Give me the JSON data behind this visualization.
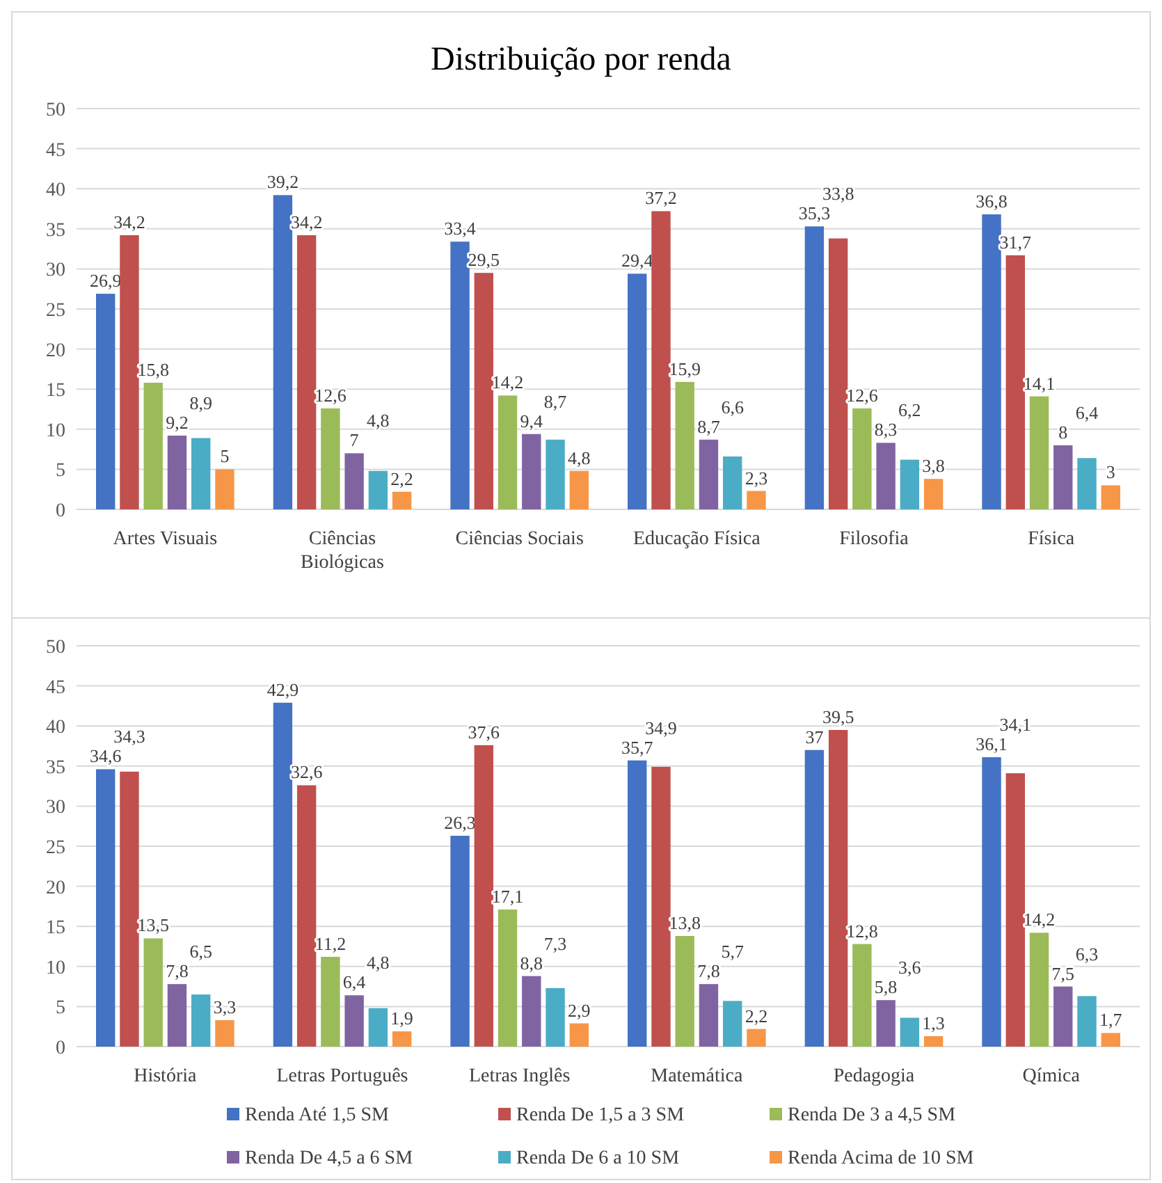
{
  "chart_data": [
    {
      "type": "bar",
      "title": "Distribuição por renda",
      "categories": [
        "Artes Visuais",
        "Ciências Biológicas",
        "Ciências Sociais",
        "Educação Física",
        "Filosofia",
        "Física"
      ],
      "ylim": [
        0,
        50
      ],
      "yticks": [
        0,
        5,
        10,
        15,
        20,
        25,
        30,
        35,
        40,
        45,
        50
      ],
      "grid": "y",
      "legend": false,
      "series": [
        {
          "color": "#4472c4",
          "values": [
            26.9,
            39.2,
            33.4,
            29.4,
            35.3,
            36.8
          ],
          "value_labels": [
            "26,9",
            "39,2",
            "33,4",
            "29,4",
            "35,3",
            "36,8"
          ]
        },
        {
          "color": "#c0504d",
          "values": [
            34.2,
            34.2,
            29.5,
            37.2,
            33.8,
            31.7
          ],
          "value_labels": [
            "34,2",
            "34,2",
            "29,5",
            "37,2",
            "33,8",
            "31,7"
          ]
        },
        {
          "color": "#9bbb59",
          "values": [
            15.8,
            12.6,
            14.2,
            15.9,
            12.6,
            14.1
          ],
          "value_labels": [
            "15,8",
            "12,6",
            "14,2",
            "15,9",
            "12,6",
            "14,1"
          ]
        },
        {
          "color": "#8064a2",
          "values": [
            9.2,
            7,
            9.4,
            8.7,
            8.3,
            8
          ],
          "value_labels": [
            "9,2",
            "7",
            "9,4",
            "8,7",
            "8,3",
            "8"
          ]
        },
        {
          "color": "#4bacc6",
          "values": [
            8.9,
            4.8,
            8.7,
            6.6,
            6.2,
            6.4
          ],
          "value_labels": [
            "8,9",
            "4,8",
            "8,7",
            "6,6",
            "6,2",
            "6,4"
          ]
        },
        {
          "color": "#f79646",
          "values": [
            5,
            2.2,
            4.8,
            2.3,
            3.8,
            3
          ],
          "value_labels": [
            "5",
            "2,2",
            "4,8",
            "2,3",
            "3,8",
            "3"
          ]
        }
      ]
    },
    {
      "type": "bar",
      "categories": [
        "História",
        "Letras Português",
        "Letras Inglês",
        "Matemática",
        "Pedagogia",
        "Qímica"
      ],
      "ylim": [
        0,
        50
      ],
      "yticks": [
        0,
        5,
        10,
        15,
        20,
        25,
        30,
        35,
        40,
        45,
        50
      ],
      "grid": "y",
      "legend": "bottom",
      "series": [
        {
          "name": "Renda Até 1,5 SM",
          "color": "#4472c4",
          "values": [
            34.6,
            42.9,
            26.3,
            35.7,
            37,
            36.1
          ],
          "value_labels": [
            "34,6",
            "42,9",
            "26,3",
            "35,7",
            "37",
            "36,1"
          ]
        },
        {
          "name": "Renda De 1,5 a 3 SM",
          "color": "#c0504d",
          "values": [
            34.3,
            32.6,
            37.6,
            34.9,
            39.5,
            34.1
          ],
          "value_labels": [
            "34,3",
            "32,6",
            "37,6",
            "34,9",
            "39,5",
            "34,1"
          ]
        },
        {
          "name": "Renda De 3 a 4,5 SM",
          "color": "#9bbb59",
          "values": [
            13.5,
            11.2,
            17.1,
            13.8,
            12.8,
            14.2
          ],
          "value_labels": [
            "13,5",
            "11,2",
            "17,1",
            "13,8",
            "12,8",
            "14,2"
          ]
        },
        {
          "name": "Renda De 4,5 a 6 SM",
          "color": "#8064a2",
          "values": [
            7.8,
            6.4,
            8.8,
            7.8,
            5.8,
            7.5
          ],
          "value_labels": [
            "7,8",
            "6,4",
            "8,8",
            "7,8",
            "5,8",
            "7,5"
          ]
        },
        {
          "name": "Renda De 6 a 10 SM",
          "color": "#4bacc6",
          "values": [
            6.5,
            4.8,
            7.3,
            5.7,
            3.6,
            6.3
          ],
          "value_labels": [
            "6,5",
            "4,8",
            "7,3",
            "5,7",
            "3,6",
            "6,3"
          ]
        },
        {
          "name": "Renda Acima de 10 SM",
          "color": "#f79646",
          "values": [
            3.3,
            1.9,
            2.9,
            2.2,
            1.3,
            1.7
          ],
          "value_labels": [
            "3,3",
            "1,9",
            "2,9",
            "2,2",
            "1,3",
            "1,7"
          ]
        }
      ]
    }
  ]
}
